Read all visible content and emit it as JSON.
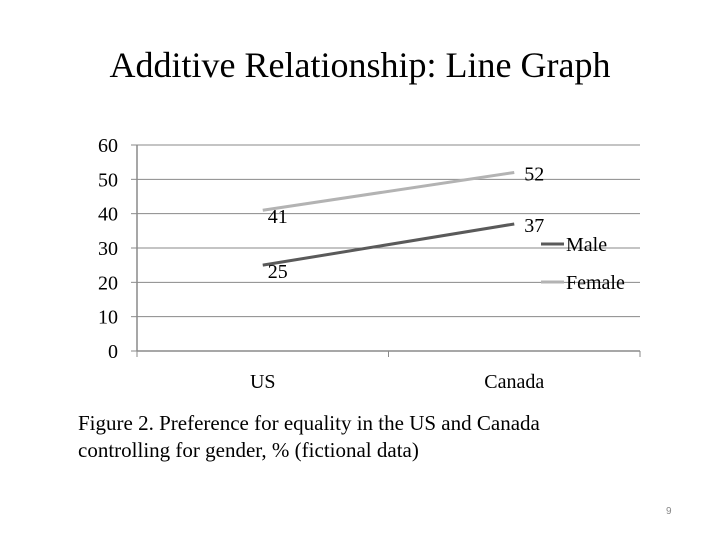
{
  "slide": {
    "title": "Additive Relationship: Line Graph",
    "caption_line1": "Figure 2. Preference for equality in the US and Canada",
    "caption_line2": "controlling for gender, % (fictional data)",
    "page_number": "9"
  },
  "chart_data": {
    "type": "line",
    "title": "",
    "xlabel": "",
    "ylabel": "",
    "categories": [
      "US",
      "Canada"
    ],
    "ylim": [
      0,
      60
    ],
    "yticks": [
      0,
      10,
      20,
      30,
      40,
      50,
      60
    ],
    "grid": true,
    "legend_position": "right",
    "series": [
      {
        "name": "Male",
        "values": [
          25,
          37
        ],
        "color": "#5a5a5a"
      },
      {
        "name": "Female",
        "values": [
          41,
          52
        ],
        "color": "#b3b3b3"
      }
    ]
  }
}
